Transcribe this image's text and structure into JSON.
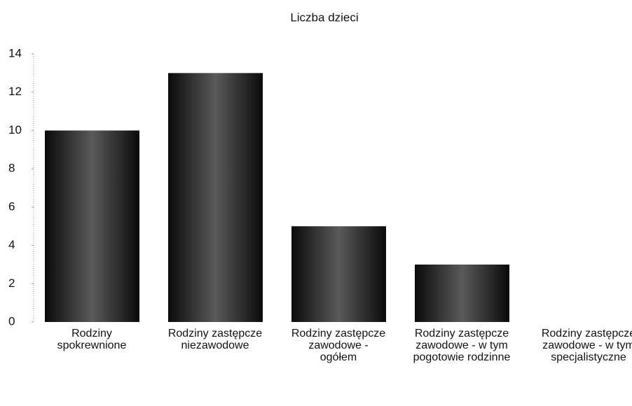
{
  "chart_data": {
    "type": "bar",
    "title": "Liczba dzieci",
    "categories": [
      "Rodziny spokrewnione",
      "Rodziny zastępcze niezawodowe",
      "Rodziny zastępcze zawodowe - ogółem",
      "Rodziny zastępcze zawodowe - w tym pogotowie rodzinne",
      "Rodziny zastępcze zawodowe - w tym specjalistyczne"
    ],
    "values": [
      10,
      13,
      5,
      3,
      0
    ],
    "color": "#1a1a1a",
    "ylim": [
      0,
      14
    ],
    "yticks": [
      0,
      2,
      4,
      6,
      8,
      10,
      12,
      14
    ],
    "grid": false
  }
}
